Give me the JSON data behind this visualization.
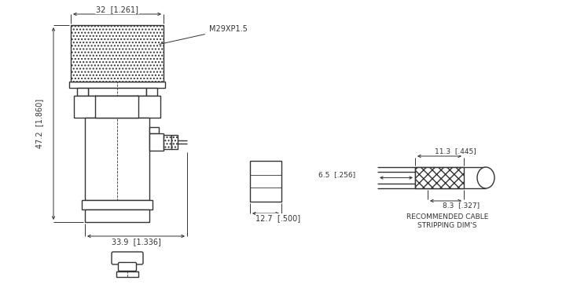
{
  "bg_color": "#ffffff",
  "line_color": "#333333",
  "annotations": {
    "top_dim": "32  [1.261]",
    "left_dim": "47.2  [1.860]",
    "bottom_dim": "33.9  [1.336]",
    "thread_label": "M29XP1.5",
    "small_dim1": "6.5  [.256]",
    "small_dim2": "12.7  [.500]",
    "small_dim3": "11.3  [.445]",
    "small_dim4": "8.3  [.327]",
    "rec_cable": "RECOMMENDED CABLE\nSTRIPPING DIM'S"
  }
}
